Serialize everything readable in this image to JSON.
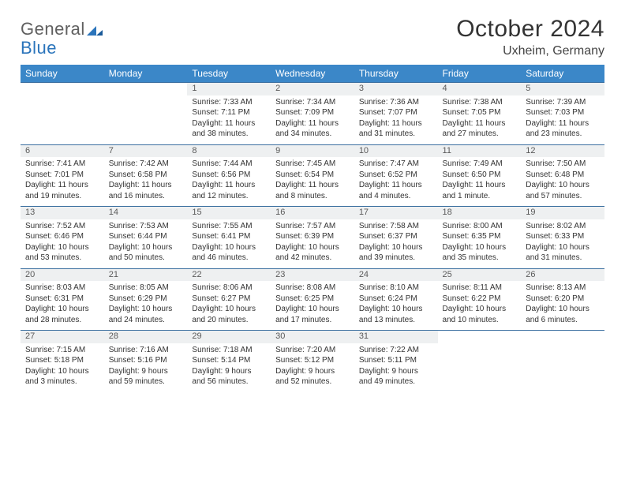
{
  "logo": {
    "part1": "General",
    "part2": "Blue"
  },
  "title": "October 2024",
  "location": "Uxheim, Germany",
  "colors": {
    "header_bg": "#3b87c8",
    "header_fg": "#ffffff",
    "daynum_bg": "#eef0f1",
    "border": "#3b6fa0",
    "logo_blue": "#2a74bb",
    "text": "#333333"
  },
  "dayHeaders": [
    "Sunday",
    "Monday",
    "Tuesday",
    "Wednesday",
    "Thursday",
    "Friday",
    "Saturday"
  ],
  "weeks": [
    [
      null,
      null,
      {
        "n": "1",
        "sr": "Sunrise: 7:33 AM",
        "ss": "Sunset: 7:11 PM",
        "dl": "Daylight: 11 hours and 38 minutes."
      },
      {
        "n": "2",
        "sr": "Sunrise: 7:34 AM",
        "ss": "Sunset: 7:09 PM",
        "dl": "Daylight: 11 hours and 34 minutes."
      },
      {
        "n": "3",
        "sr": "Sunrise: 7:36 AM",
        "ss": "Sunset: 7:07 PM",
        "dl": "Daylight: 11 hours and 31 minutes."
      },
      {
        "n": "4",
        "sr": "Sunrise: 7:38 AM",
        "ss": "Sunset: 7:05 PM",
        "dl": "Daylight: 11 hours and 27 minutes."
      },
      {
        "n": "5",
        "sr": "Sunrise: 7:39 AM",
        "ss": "Sunset: 7:03 PM",
        "dl": "Daylight: 11 hours and 23 minutes."
      }
    ],
    [
      {
        "n": "6",
        "sr": "Sunrise: 7:41 AM",
        "ss": "Sunset: 7:01 PM",
        "dl": "Daylight: 11 hours and 19 minutes."
      },
      {
        "n": "7",
        "sr": "Sunrise: 7:42 AM",
        "ss": "Sunset: 6:58 PM",
        "dl": "Daylight: 11 hours and 16 minutes."
      },
      {
        "n": "8",
        "sr": "Sunrise: 7:44 AM",
        "ss": "Sunset: 6:56 PM",
        "dl": "Daylight: 11 hours and 12 minutes."
      },
      {
        "n": "9",
        "sr": "Sunrise: 7:45 AM",
        "ss": "Sunset: 6:54 PM",
        "dl": "Daylight: 11 hours and 8 minutes."
      },
      {
        "n": "10",
        "sr": "Sunrise: 7:47 AM",
        "ss": "Sunset: 6:52 PM",
        "dl": "Daylight: 11 hours and 4 minutes."
      },
      {
        "n": "11",
        "sr": "Sunrise: 7:49 AM",
        "ss": "Sunset: 6:50 PM",
        "dl": "Daylight: 11 hours and 1 minute."
      },
      {
        "n": "12",
        "sr": "Sunrise: 7:50 AM",
        "ss": "Sunset: 6:48 PM",
        "dl": "Daylight: 10 hours and 57 minutes."
      }
    ],
    [
      {
        "n": "13",
        "sr": "Sunrise: 7:52 AM",
        "ss": "Sunset: 6:46 PM",
        "dl": "Daylight: 10 hours and 53 minutes."
      },
      {
        "n": "14",
        "sr": "Sunrise: 7:53 AM",
        "ss": "Sunset: 6:44 PM",
        "dl": "Daylight: 10 hours and 50 minutes."
      },
      {
        "n": "15",
        "sr": "Sunrise: 7:55 AM",
        "ss": "Sunset: 6:41 PM",
        "dl": "Daylight: 10 hours and 46 minutes."
      },
      {
        "n": "16",
        "sr": "Sunrise: 7:57 AM",
        "ss": "Sunset: 6:39 PM",
        "dl": "Daylight: 10 hours and 42 minutes."
      },
      {
        "n": "17",
        "sr": "Sunrise: 7:58 AM",
        "ss": "Sunset: 6:37 PM",
        "dl": "Daylight: 10 hours and 39 minutes."
      },
      {
        "n": "18",
        "sr": "Sunrise: 8:00 AM",
        "ss": "Sunset: 6:35 PM",
        "dl": "Daylight: 10 hours and 35 minutes."
      },
      {
        "n": "19",
        "sr": "Sunrise: 8:02 AM",
        "ss": "Sunset: 6:33 PM",
        "dl": "Daylight: 10 hours and 31 minutes."
      }
    ],
    [
      {
        "n": "20",
        "sr": "Sunrise: 8:03 AM",
        "ss": "Sunset: 6:31 PM",
        "dl": "Daylight: 10 hours and 28 minutes."
      },
      {
        "n": "21",
        "sr": "Sunrise: 8:05 AM",
        "ss": "Sunset: 6:29 PM",
        "dl": "Daylight: 10 hours and 24 minutes."
      },
      {
        "n": "22",
        "sr": "Sunrise: 8:06 AM",
        "ss": "Sunset: 6:27 PM",
        "dl": "Daylight: 10 hours and 20 minutes."
      },
      {
        "n": "23",
        "sr": "Sunrise: 8:08 AM",
        "ss": "Sunset: 6:25 PM",
        "dl": "Daylight: 10 hours and 17 minutes."
      },
      {
        "n": "24",
        "sr": "Sunrise: 8:10 AM",
        "ss": "Sunset: 6:24 PM",
        "dl": "Daylight: 10 hours and 13 minutes."
      },
      {
        "n": "25",
        "sr": "Sunrise: 8:11 AM",
        "ss": "Sunset: 6:22 PM",
        "dl": "Daylight: 10 hours and 10 minutes."
      },
      {
        "n": "26",
        "sr": "Sunrise: 8:13 AM",
        "ss": "Sunset: 6:20 PM",
        "dl": "Daylight: 10 hours and 6 minutes."
      }
    ],
    [
      {
        "n": "27",
        "sr": "Sunrise: 7:15 AM",
        "ss": "Sunset: 5:18 PM",
        "dl": "Daylight: 10 hours and 3 minutes."
      },
      {
        "n": "28",
        "sr": "Sunrise: 7:16 AM",
        "ss": "Sunset: 5:16 PM",
        "dl": "Daylight: 9 hours and 59 minutes."
      },
      {
        "n": "29",
        "sr": "Sunrise: 7:18 AM",
        "ss": "Sunset: 5:14 PM",
        "dl": "Daylight: 9 hours and 56 minutes."
      },
      {
        "n": "30",
        "sr": "Sunrise: 7:20 AM",
        "ss": "Sunset: 5:12 PM",
        "dl": "Daylight: 9 hours and 52 minutes."
      },
      {
        "n": "31",
        "sr": "Sunrise: 7:22 AM",
        "ss": "Sunset: 5:11 PM",
        "dl": "Daylight: 9 hours and 49 minutes."
      },
      null,
      null
    ]
  ]
}
